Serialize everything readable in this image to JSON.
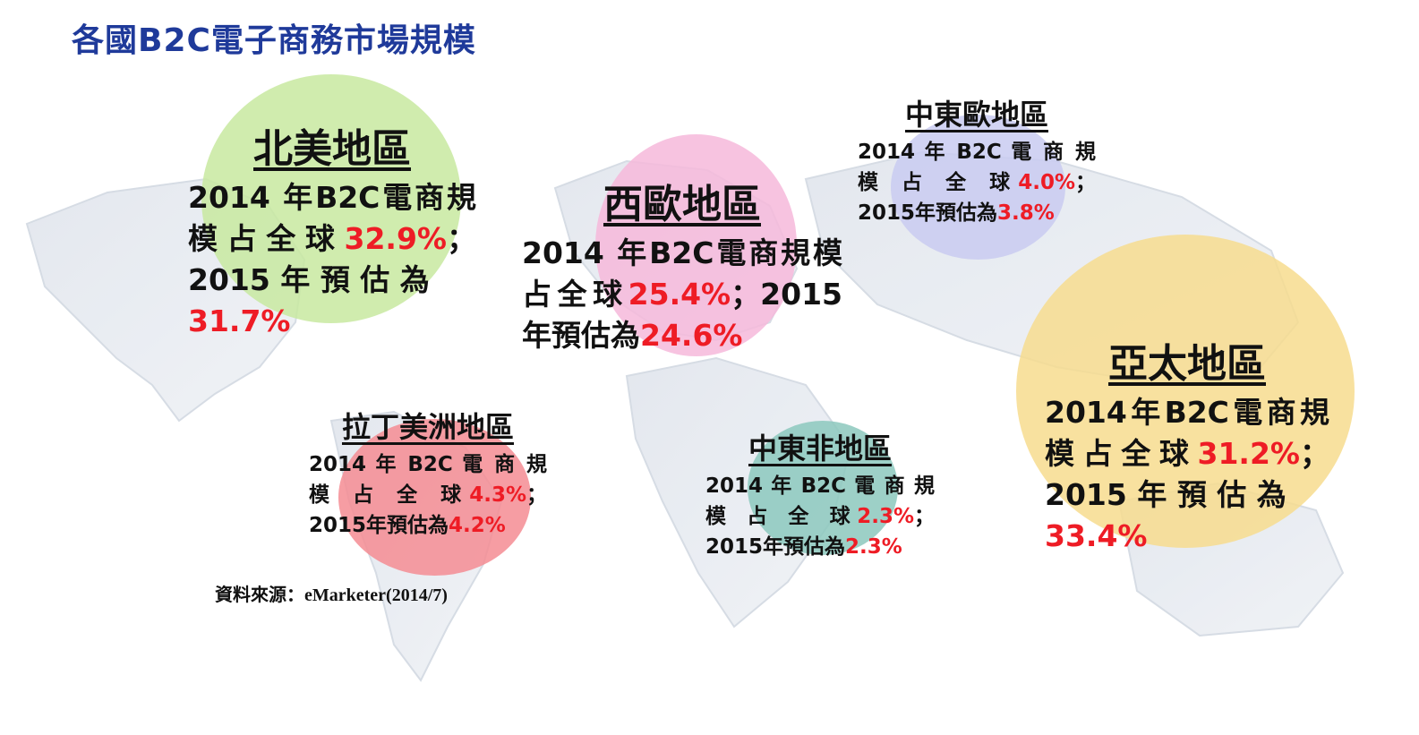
{
  "title": "各國B2C電子商務市場規模",
  "colors": {
    "title": "#1f3a9a",
    "highlight": "#ee1c25",
    "na": "#c8e9a0",
    "we": "#f6b9da",
    "cee": "#c9cbf1",
    "ap": "#f7dc8e",
    "la": "#f48c93",
    "mea": "#8cc8bd"
  },
  "regions": {
    "north_america": {
      "name": "北美地區",
      "text1": "2014 年B2C電商規模占全球",
      "share2014": "32.9%",
      "text2": "；2015 年 預 估 為",
      "forecast2015": "31.7%"
    },
    "western_europe": {
      "name": "西歐地區",
      "text1": "2014 年B2C電商規模占全球",
      "share2014": "25.4%",
      "text2": "；2015 年預估為",
      "forecast2015": "24.6%"
    },
    "central_eastern_europe": {
      "name": "中東歐地區",
      "text1": "2014 年 B2C 電 商 規 模 占 全 球",
      "share2014": "4.0%",
      "text2": "；2015年預估為",
      "forecast2015": "3.8%"
    },
    "asia_pacific": {
      "name": "亞太地區",
      "text1": "2014年B2C電商規模占全球",
      "share2014": "31.2%",
      "text2": "；2015 年 預 估 為",
      "forecast2015": "33.4%"
    },
    "latin_america": {
      "name": "拉丁美洲地區",
      "text1": "2014 年 B2C 電 商 規 模 占 全 球",
      "share2014": "4.3%",
      "text2": "；2015年預估為",
      "forecast2015": "4.2%"
    },
    "middle_east_africa": {
      "name": "中東非地區",
      "text1": "2014 年 B2C 電 商 規 模 占 全 球",
      "share2014": "2.3%",
      "text2": "；2015年預估為",
      "forecast2015": "2.3%"
    }
  },
  "source": "資料來源：eMarketer(2014/7)"
}
